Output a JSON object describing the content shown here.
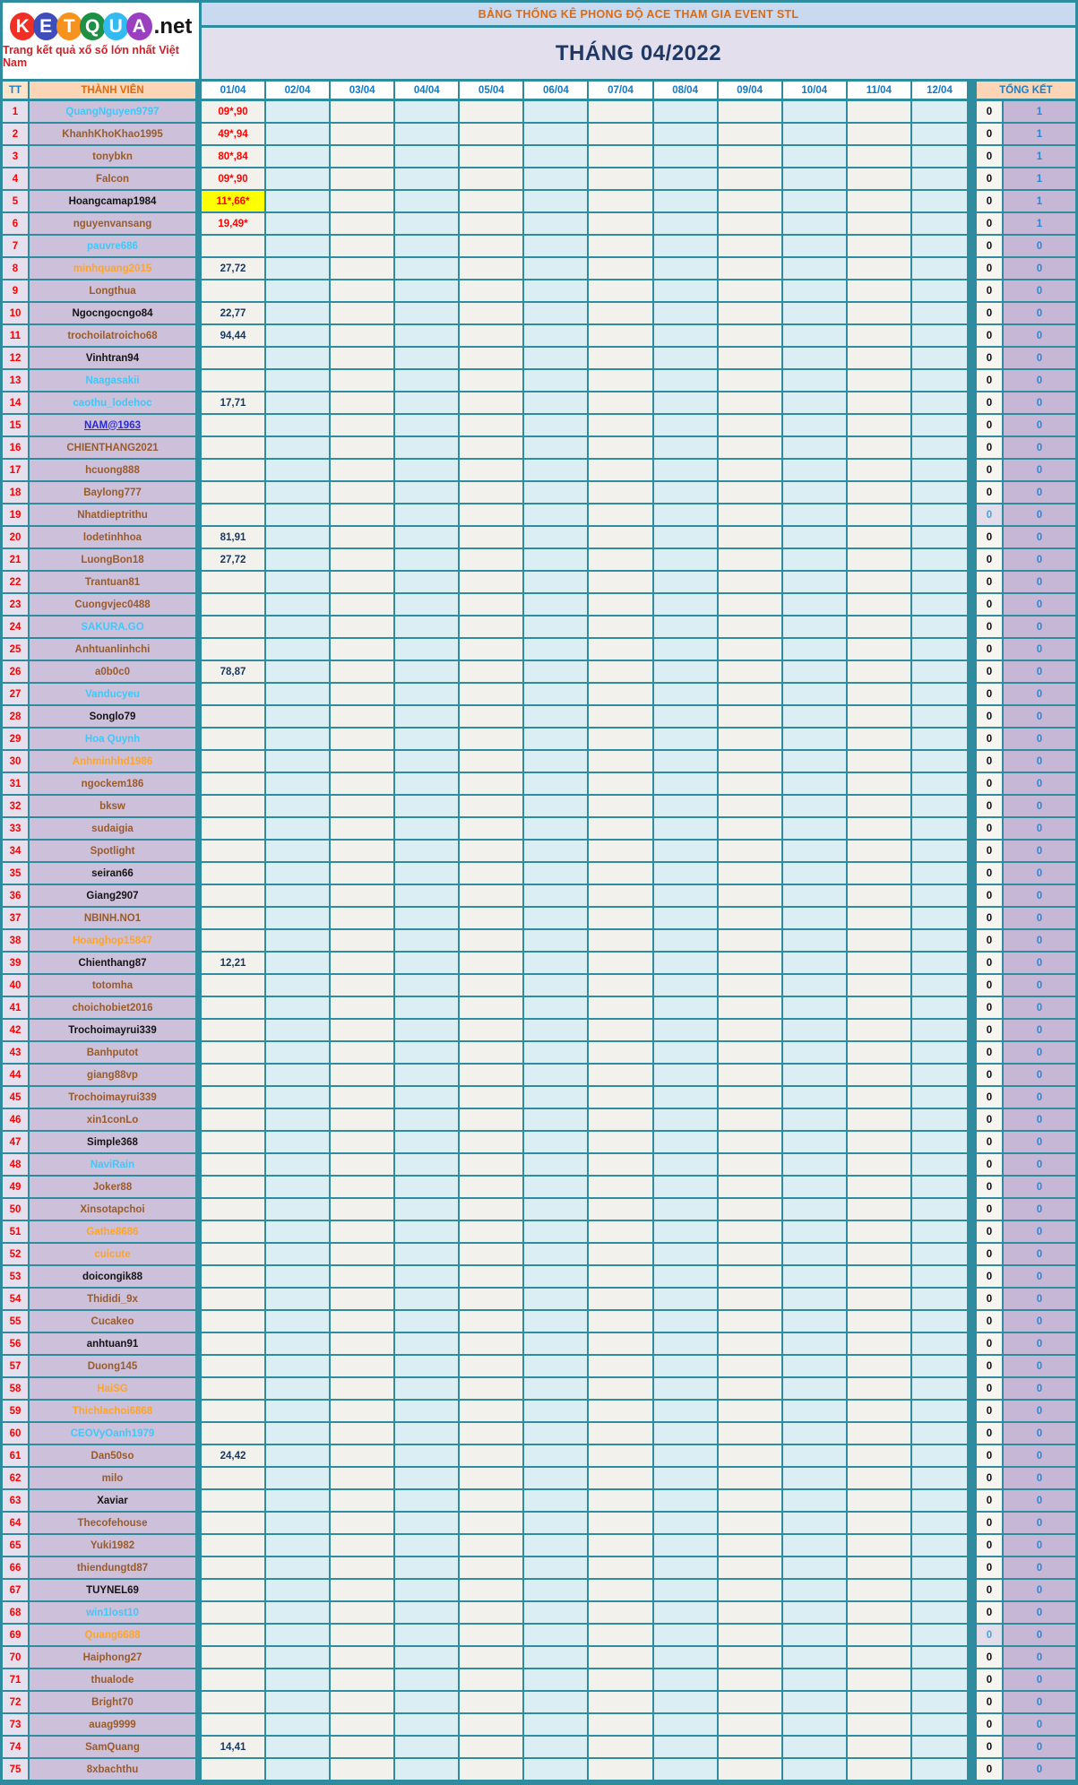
{
  "logo": {
    "letters": [
      {
        "ch": "K",
        "color": "#EE3124"
      },
      {
        "ch": "E",
        "color": "#3E4DB8"
      },
      {
        "ch": "T",
        "color": "#F6921E"
      },
      {
        "ch": "Q",
        "color": "#1F8F45"
      },
      {
        "ch": "U",
        "color": "#35B9F1"
      },
      {
        "ch": "A",
        "color": "#9B3FC1"
      }
    ],
    "suffix": ".net",
    "tagline": "Trang kết quả xổ số lớn nhất Việt Nam"
  },
  "header": {
    "title": "BẢNG THỐNG KÊ PHONG ĐỘ ACE THAM GIA EVENT STL",
    "month_title": "THÁNG 04/2022"
  },
  "colors": {
    "background_teal": "#2E8C9E",
    "highlight_yellow": "#FFFF00",
    "value_red": "#FE0000",
    "value_navy": "#17375E",
    "total_blue": "#2E86D0",
    "name_palette": {
      "brown": "#9A5B2B",
      "lightblue": "#3FC8F9",
      "orange": "#FFA428",
      "black": "#141414",
      "link": "#2A2AD4"
    }
  },
  "table": {
    "columns": {
      "tt": "TT",
      "member": "THÀNH VIÊN",
      "dates": [
        "01/04",
        "02/04",
        "03/04",
        "04/04",
        "05/04",
        "06/04",
        "07/04",
        "08/04",
        "09/04",
        "10/04",
        "11/04",
        "12/04"
      ],
      "total": "TỔNG KẾT"
    },
    "rows": [
      {
        "n": 1,
        "name": "QuangNguyen9797",
        "c": "lightblue",
        "v": "09*,90",
        "vc": "red",
        "t1": "0",
        "t2": "1"
      },
      {
        "n": 2,
        "name": "KhanhKhoKhao1995",
        "c": "brown",
        "v": "49*,94",
        "vc": "red",
        "t1": "0",
        "t2": "1"
      },
      {
        "n": 3,
        "name": "tonybkn",
        "c": "brown",
        "v": "80*,84",
        "vc": "red",
        "t1": "0",
        "t2": "1"
      },
      {
        "n": 4,
        "name": "Falcon",
        "c": "brown",
        "v": "09*,90",
        "vc": "red",
        "t1": "0",
        "t2": "1"
      },
      {
        "n": 5,
        "name": "Hoangcamap1984",
        "c": "black",
        "v": "11*,66*",
        "vc": "red",
        "hy": true,
        "t1": "0",
        "t2": "1"
      },
      {
        "n": 6,
        "name": "nguyenvansang",
        "c": "brown",
        "v": "19,49*",
        "vc": "red",
        "t1": "0",
        "t2": "1"
      },
      {
        "n": 7,
        "name": "pauvre686",
        "c": "lightblue",
        "v": "",
        "t1": "0",
        "t2": "0"
      },
      {
        "n": 8,
        "name": "minhquang2015",
        "c": "orange",
        "v": "27,72",
        "vc": "navy",
        "t1": "0",
        "t2": "0"
      },
      {
        "n": 9,
        "name": "Longthua",
        "c": "brown",
        "v": "",
        "t1": "0",
        "t2": "0"
      },
      {
        "n": 10,
        "name": "Ngocngocngo84",
        "c": "black",
        "v": "22,77",
        "vc": "navy",
        "t1": "0",
        "t2": "0"
      },
      {
        "n": 11,
        "name": "trochoilatroicho68",
        "c": "brown",
        "v": "94,44",
        "vc": "navy",
        "t1": "0",
        "t2": "0"
      },
      {
        "n": 12,
        "name": "Vinhtran94",
        "c": "black",
        "v": "",
        "t1": "0",
        "t2": "0"
      },
      {
        "n": 13,
        "name": "Naagasakii",
        "c": "lightblue",
        "v": "",
        "t1": "0",
        "t2": "0"
      },
      {
        "n": 14,
        "name": "caothu_lodehoc",
        "c": "lightblue",
        "v": "17,71",
        "vc": "navy",
        "t1": "0",
        "t2": "0"
      },
      {
        "n": 15,
        "name": "NAM@1963",
        "c": "link",
        "v": "",
        "t1": "0",
        "t2": "0"
      },
      {
        "n": 16,
        "name": "CHIENTHANG2021",
        "c": "brown",
        "v": "",
        "t1": "0",
        "t2": "0"
      },
      {
        "n": 17,
        "name": "hcuong888",
        "c": "brown",
        "v": "",
        "t1": "0",
        "t2": "0"
      },
      {
        "n": 18,
        "name": "Baylong777",
        "c": "brown",
        "v": "",
        "t1": "0",
        "t2": "0"
      },
      {
        "n": 19,
        "name": "Nhatdieptrithu",
        "c": "brown",
        "v": "",
        "t1": "0",
        "t2": "0",
        "t1c": "blue"
      },
      {
        "n": 20,
        "name": "lodetinhhoa",
        "c": "brown",
        "v": "81,91",
        "vc": "navy",
        "t1": "0",
        "t2": "0"
      },
      {
        "n": 21,
        "name": "LuongBon18",
        "c": "brown",
        "v": "27,72",
        "vc": "navy",
        "t1": "0",
        "t2": "0"
      },
      {
        "n": 22,
        "name": "Trantuan81",
        "c": "brown",
        "v": "",
        "t1": "0",
        "t2": "0"
      },
      {
        "n": 23,
        "name": "Cuongvjec0488",
        "c": "brown",
        "v": "",
        "t1": "0",
        "t2": "0"
      },
      {
        "n": 24,
        "name": "SAKURA.GO",
        "c": "lightblue",
        "v": "",
        "t1": "0",
        "t2": "0"
      },
      {
        "n": 25,
        "name": "Anhtuanlinhchi",
        "c": "brown",
        "v": "",
        "t1": "0",
        "t2": "0"
      },
      {
        "n": 26,
        "name": "a0b0c0",
        "c": "brown",
        "v": "78,87",
        "vc": "navy",
        "t1": "0",
        "t2": "0"
      },
      {
        "n": 27,
        "name": "Vanducyeu",
        "c": "lightblue",
        "v": "",
        "t1": "0",
        "t2": "0"
      },
      {
        "n": 28,
        "name": "Songlo79",
        "c": "black",
        "v": "",
        "t1": "0",
        "t2": "0"
      },
      {
        "n": 29,
        "name": "Hoa Quynh",
        "c": "lightblue",
        "v": "",
        "t1": "0",
        "t2": "0"
      },
      {
        "n": 30,
        "name": "Anhminhhd1986",
        "c": "orange",
        "v": "",
        "t1": "0",
        "t2": "0"
      },
      {
        "n": 31,
        "name": "ngockem186",
        "c": "brown",
        "v": "",
        "t1": "0",
        "t2": "0"
      },
      {
        "n": 32,
        "name": "bksw",
        "c": "brown",
        "v": "",
        "t1": "0",
        "t2": "0"
      },
      {
        "n": 33,
        "name": "sudaigia",
        "c": "brown",
        "v": "",
        "t1": "0",
        "t2": "0"
      },
      {
        "n": 34,
        "name": "Spotlight",
        "c": "brown",
        "v": "",
        "t1": "0",
        "t2": "0"
      },
      {
        "n": 35,
        "name": "seiran66",
        "c": "black",
        "v": "",
        "t1": "0",
        "t2": "0"
      },
      {
        "n": 36,
        "name": "Giang2907",
        "c": "black",
        "v": "",
        "t1": "0",
        "t2": "0"
      },
      {
        "n": 37,
        "name": "NBINH.NO1",
        "c": "brown",
        "v": "",
        "t1": "0",
        "t2": "0"
      },
      {
        "n": 38,
        "name": "Hoanghop15847",
        "c": "orange",
        "v": "",
        "t1": "0",
        "t2": "0"
      },
      {
        "n": 39,
        "name": "Chienthang87",
        "c": "black",
        "v": "12,21",
        "vc": "navy",
        "t1": "0",
        "t2": "0"
      },
      {
        "n": 40,
        "name": "totomha",
        "c": "brown",
        "v": "",
        "t1": "0",
        "t2": "0"
      },
      {
        "n": 41,
        "name": "choichobiet2016",
        "c": "brown",
        "v": "",
        "t1": "0",
        "t2": "0"
      },
      {
        "n": 42,
        "name": "Trochoimayrui339",
        "c": "black",
        "v": "",
        "t1": "0",
        "t2": "0"
      },
      {
        "n": 43,
        "name": "Banhputot",
        "c": "brown",
        "v": "",
        "t1": "0",
        "t2": "0"
      },
      {
        "n": 44,
        "name": "giang88vp",
        "c": "brown",
        "v": "",
        "t1": "0",
        "t2": "0"
      },
      {
        "n": 45,
        "name": "Trochoimayrui339",
        "c": "brown",
        "v": "",
        "t1": "0",
        "t2": "0"
      },
      {
        "n": 46,
        "name": "xin1conLo",
        "c": "brown",
        "v": "",
        "t1": "0",
        "t2": "0"
      },
      {
        "n": 47,
        "name": "Simple368",
        "c": "black",
        "v": "",
        "t1": "0",
        "t2": "0"
      },
      {
        "n": 48,
        "name": "NaviRain",
        "c": "lightblue",
        "v": "",
        "t1": "0",
        "t2": "0"
      },
      {
        "n": 49,
        "name": "Joker88",
        "c": "brown",
        "v": "",
        "t1": "0",
        "t2": "0"
      },
      {
        "n": 50,
        "name": "Xinsotapchoi",
        "c": "brown",
        "v": "",
        "t1": "0",
        "t2": "0"
      },
      {
        "n": 51,
        "name": "Gathe8686",
        "c": "orange",
        "v": "",
        "t1": "0",
        "t2": "0"
      },
      {
        "n": 52,
        "name": "cuicute",
        "c": "orange",
        "v": "",
        "t1": "0",
        "t2": "0"
      },
      {
        "n": 53,
        "name": "doicongik88",
        "c": "black",
        "v": "",
        "t1": "0",
        "t2": "0"
      },
      {
        "n": 54,
        "name": "Thididi_9x",
        "c": "brown",
        "v": "",
        "t1": "0",
        "t2": "0"
      },
      {
        "n": 55,
        "name": "Cucakeo",
        "c": "brown",
        "v": "",
        "t1": "0",
        "t2": "0"
      },
      {
        "n": 56,
        "name": "anhtuan91",
        "c": "black",
        "v": "",
        "t1": "0",
        "t2": "0"
      },
      {
        "n": 57,
        "name": "Duong145",
        "c": "brown",
        "v": "",
        "t1": "0",
        "t2": "0"
      },
      {
        "n": 58,
        "name": "HaiSG",
        "c": "orange",
        "v": "",
        "t1": "0",
        "t2": "0"
      },
      {
        "n": 59,
        "name": "Thichlachoi6868",
        "c": "orange",
        "v": "",
        "t1": "0",
        "t2": "0"
      },
      {
        "n": 60,
        "name": "CEOVyOanh1979",
        "c": "lightblue",
        "v": "",
        "t1": "0",
        "t2": "0"
      },
      {
        "n": 61,
        "name": "Dan50so",
        "c": "brown",
        "v": "24,42",
        "vc": "navy",
        "t1": "0",
        "t2": "0"
      },
      {
        "n": 62,
        "name": "milo",
        "c": "brown",
        "v": "",
        "t1": "0",
        "t2": "0"
      },
      {
        "n": 63,
        "name": "Xaviar",
        "c": "black",
        "v": "",
        "t1": "0",
        "t2": "0"
      },
      {
        "n": 64,
        "name": "Thecofehouse",
        "c": "brown",
        "v": "",
        "t1": "0",
        "t2": "0"
      },
      {
        "n": 65,
        "name": "Yuki1982",
        "c": "brown",
        "v": "",
        "t1": "0",
        "t2": "0"
      },
      {
        "n": 66,
        "name": "thiendungtd87",
        "c": "brown",
        "v": "",
        "t1": "0",
        "t2": "0"
      },
      {
        "n": 67,
        "name": "TUYNEL69",
        "c": "black",
        "v": "",
        "t1": "0",
        "t2": "0"
      },
      {
        "n": 68,
        "name": "win1lost10",
        "c": "lightblue",
        "v": "",
        "t1": "0",
        "t2": "0"
      },
      {
        "n": 69,
        "name": "Quang6688",
        "c": "orange",
        "v": "",
        "t1": "0",
        "t2": "0",
        "t1c": "blue"
      },
      {
        "n": 70,
        "name": "Haiphong27",
        "c": "brown",
        "v": "",
        "t1": "0",
        "t2": "0"
      },
      {
        "n": 71,
        "name": "thualode",
        "c": "brown",
        "v": "",
        "t1": "0",
        "t2": "0"
      },
      {
        "n": 72,
        "name": "Bright70",
        "c": "brown",
        "v": "",
        "t1": "0",
        "t2": "0"
      },
      {
        "n": 73,
        "name": "auag9999",
        "c": "brown",
        "v": "",
        "t1": "0",
        "t2": "0"
      },
      {
        "n": 74,
        "name": "SamQuang",
        "c": "brown",
        "v": "14,41",
        "vc": "navy",
        "t1": "0",
        "t2": "0"
      },
      {
        "n": 75,
        "name": "8xbachthu",
        "c": "brown",
        "v": "",
        "t1": "0",
        "t2": "0"
      }
    ]
  }
}
